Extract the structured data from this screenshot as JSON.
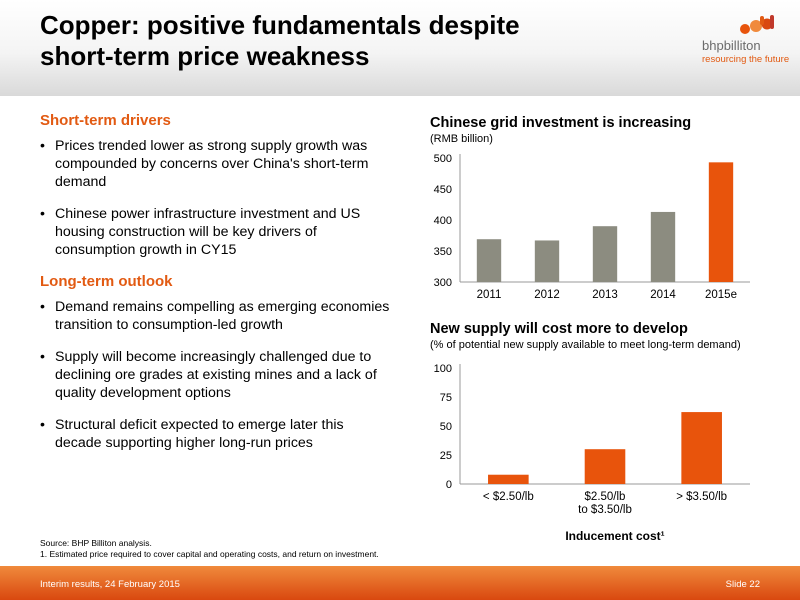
{
  "header": {
    "title_line1": "Copper: positive fundamentals despite",
    "title_line2": "short-term price weakness",
    "logo_brand": "bhpbilliton",
    "logo_tagline": "resourcing the future"
  },
  "left": {
    "short_term_heading": "Short-term drivers",
    "short_term_bullets": [
      "Prices trended lower as strong supply growth was compounded by concerns over China's short-term demand",
      "Chinese power infrastructure investment and US housing construction will be key drivers of consumption growth in CY15"
    ],
    "long_term_heading": "Long-term outlook",
    "long_term_bullets": [
      "Demand remains compelling as emerging economies transition to consumption-led growth",
      "Supply will become increasingly challenged due to declining ore grades at existing mines and a lack of quality development options",
      "Structural deficit expected to emerge later this decade supporting higher long-run prices"
    ]
  },
  "footnotes": {
    "source": "Source:   BHP Billiton analysis.",
    "note1": "1.  Estimated price required to cover capital and operating costs, and return on investment."
  },
  "footer": {
    "left": "Interim results, 24 February 2015",
    "right": "Slide 22"
  },
  "colors": {
    "accent": "#e25a12",
    "bar_grey": "#8c8c80",
    "bar_orange": "#e8540c"
  },
  "chart_data": [
    {
      "type": "bar",
      "title": "Chinese grid investment is increasing",
      "subtitle": "(RMB billion)",
      "categories": [
        "2011",
        "2012",
        "2013",
        "2014",
        "2015e"
      ],
      "values": [
        369,
        367,
        390,
        413,
        493
      ],
      "bar_colors": [
        "#8c8c80",
        "#8c8c80",
        "#8c8c80",
        "#8c8c80",
        "#e8540c"
      ],
      "ylim": [
        300,
        500
      ],
      "yticks": [
        300,
        350,
        400,
        450,
        500
      ],
      "xlabel": "",
      "ylabel": "",
      "grid": false
    },
    {
      "type": "bar",
      "title": "New supply will cost more to develop",
      "subtitle": "(% of potential new supply available to meet long-term demand)",
      "categories": [
        "< $2.50/lb",
        "$2.50/lb\nto $3.50/lb",
        "> $3.50/lb"
      ],
      "values": [
        8,
        30,
        62
      ],
      "bar_colors": [
        "#e8540c",
        "#e8540c",
        "#e8540c"
      ],
      "ylim": [
        0,
        100
      ],
      "yticks": [
        0,
        25,
        50,
        75,
        100
      ],
      "xlabel": "Inducement cost¹",
      "ylabel": "",
      "grid": false
    }
  ]
}
